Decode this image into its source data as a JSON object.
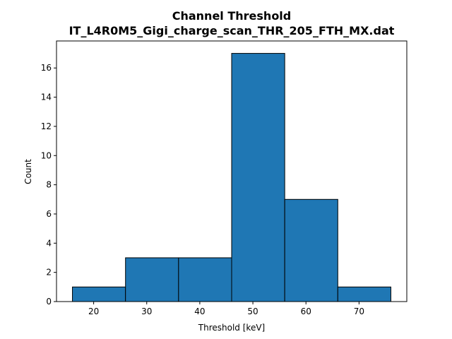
{
  "chart_data": {
    "type": "bar",
    "title": "Channel Threshold",
    "subtitle": "IT_L4R0M5_Gigi_charge_scan_THR_205_FTH_MX.dat",
    "xlabel": "Threshold [keV]",
    "ylabel": "Count",
    "bins": [
      {
        "start": 16,
        "end": 26,
        "count": 1
      },
      {
        "start": 26,
        "end": 36,
        "count": 3
      },
      {
        "start": 36,
        "end": 46,
        "count": 3
      },
      {
        "start": 46,
        "end": 56,
        "count": 17
      },
      {
        "start": 56,
        "end": 66,
        "count": 7
      },
      {
        "start": 66,
        "end": 76,
        "count": 1
      }
    ],
    "xlim": [
      13,
      79
    ],
    "ylim": [
      0,
      17.85
    ],
    "xticks": [
      20,
      30,
      40,
      50,
      60,
      70
    ],
    "yticks": [
      0,
      2,
      4,
      6,
      8,
      10,
      12,
      14,
      16
    ],
    "grid": false,
    "legend": "none",
    "bar_color": "#1f77b4",
    "edge_color": "#000000"
  }
}
